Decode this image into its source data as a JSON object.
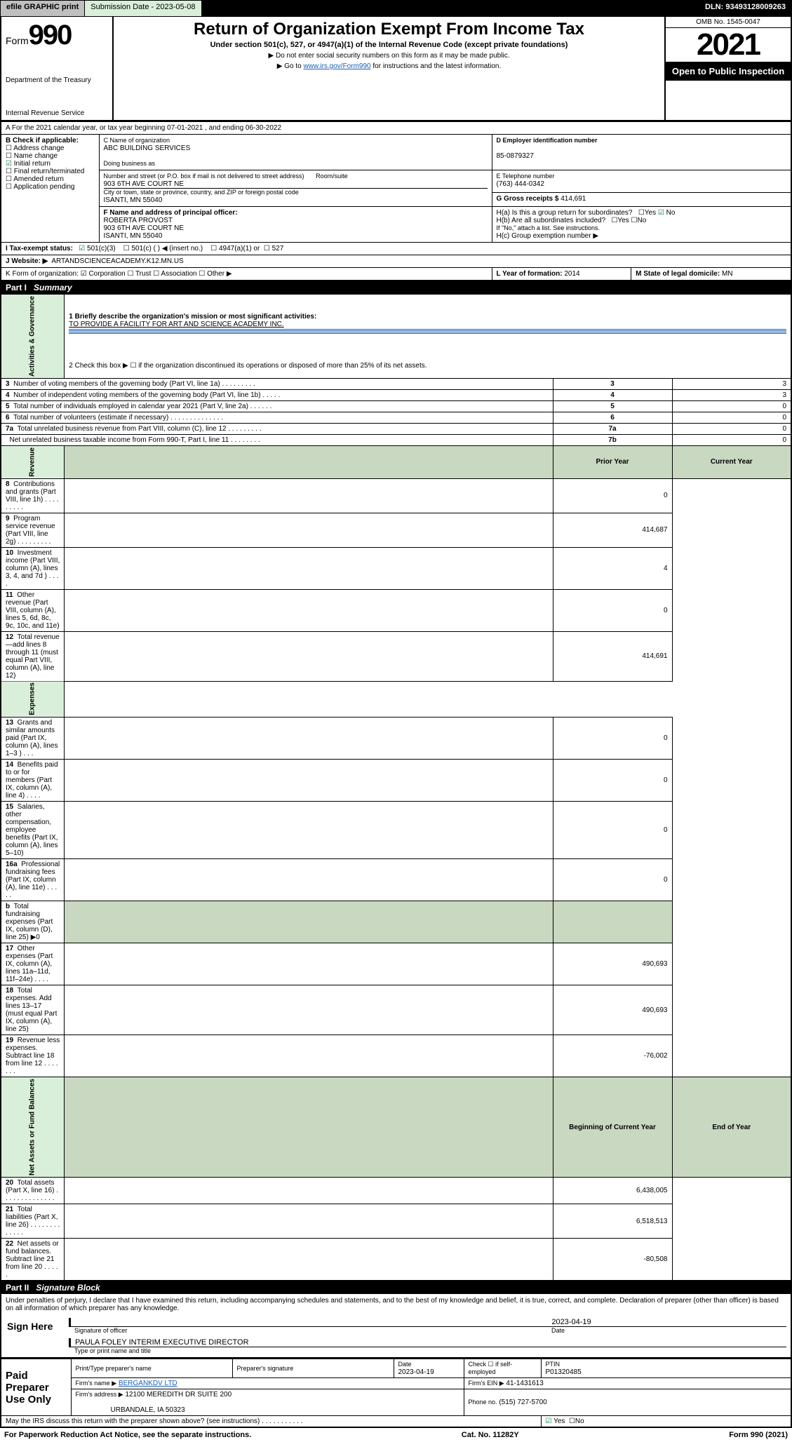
{
  "topbar": {
    "efile": "efile GRAPHIC print",
    "submission": "Submission Date - 2023-05-08",
    "dln": "DLN: 93493128009263"
  },
  "header": {
    "form_word": "Form",
    "form_num": "990",
    "dept": "Department of the Treasury",
    "irs": "Internal Revenue Service",
    "title": "Return of Organization Exempt From Income Tax",
    "sub": "Under section 501(c), 527, or 4947(a)(1) of the Internal Revenue Code (except private foundations)",
    "note1": "▶ Do not enter social security numbers on this form as it may be made public.",
    "note2_pre": "▶ Go to ",
    "note2_link": "www.irs.gov/Form990",
    "note2_post": " for instructions and the latest information.",
    "omb": "OMB No. 1545-0047",
    "year": "2021",
    "open": "Open to Public Inspection"
  },
  "periodA": "A For the 2021 calendar year, or tax year beginning 07-01-2021  , and ending 06-30-2022",
  "boxB": {
    "label": "B Check if applicable:",
    "items": [
      "Address change",
      "Name change",
      "Initial return",
      "Final return/terminated",
      "Amended return",
      "Application pending"
    ],
    "checked_idx": 2
  },
  "boxC": {
    "name_lbl": "C Name of organization",
    "name": "ABC BUILDING SERVICES",
    "dba_lbl": "Doing business as",
    "addr_lbl": "Number and street (or P.O. box if mail is not delivered to street address)",
    "room_lbl": "Room/suite",
    "addr": "903 6TH AVE COURT NE",
    "city_lbl": "City or town, state or province, country, and ZIP or foreign postal code",
    "city": "ISANTI, MN  55040"
  },
  "boxD": {
    "lbl": "D Employer identification number",
    "val": "85-0879327"
  },
  "boxE": {
    "lbl": "E Telephone number",
    "val": "(763) 444-0342"
  },
  "boxG": {
    "lbl": "G Gross receipts $",
    "val": "414,691"
  },
  "boxF": {
    "lbl": "F Name and address of principal officer:",
    "name": "ROBERTA PROVOST",
    "addr": "903 6TH AVE COURT NE",
    "city": "ISANTI, MN  55040"
  },
  "boxH": {
    "a": "H(a)  Is this a group return for subordinates?",
    "a_no": "No",
    "b": "H(b)  Are all subordinates included?",
    "b_note": "If \"No,\" attach a list. See instructions.",
    "c": "H(c)  Group exemption number ▶"
  },
  "taxI": {
    "lbl": "I  Tax-exempt status:",
    "c3": "501(c)(3)",
    "c": "501(c) (  ) ◀ (insert no.)",
    "a4947": "4947(a)(1) or",
    "s527": "527"
  },
  "taxJ": {
    "lbl": "J  Website: ▶",
    "val": "ARTANDSCIENCEACADEMY.K12.MN.US"
  },
  "rowK": "K Form of organization:  ☑ Corporation  ☐ Trust  ☐ Association  ☐ Other ▶",
  "rowL": {
    "lbl": "L Year of formation:",
    "val": "2014"
  },
  "rowM": {
    "lbl": "M State of legal domicile:",
    "val": "MN"
  },
  "part1": {
    "label": "Part I",
    "title": "Summary"
  },
  "summary": {
    "q1": "1   Briefly describe the organization's mission or most significant activities:",
    "q1v": "TO PROVIDE A FACILITY FOR ART AND SCIENCE ACADEMY INC.",
    "q2": "2   Check this box ▶ ☐  if the organization discontinued its operations or disposed of more than 25% of its net assets.",
    "rows_ag": [
      {
        "n": "3",
        "t": "Number of voting members of the governing body (Part VI, line 1a)  .   .   .   .   .   .   .   .   .",
        "box": "3",
        "v": "3"
      },
      {
        "n": "4",
        "t": "Number of independent voting members of the governing body (Part VI, line 1b)  .   .   .   .   .",
        "box": "4",
        "v": "3"
      },
      {
        "n": "5",
        "t": "Total number of individuals employed in calendar year 2021 (Part V, line 2a)  .   .   .   .   .   .",
        "box": "5",
        "v": "0"
      },
      {
        "n": "6",
        "t": "Total number of volunteers (estimate if necessary)  .   .   .   .   .   .   .   .   .   .   .   .   .   .",
        "box": "6",
        "v": "0"
      },
      {
        "n": "7a",
        "t": "Total unrelated business revenue from Part VIII, column (C), line 12  .   .   .   .   .   .   .   .   .",
        "box": "7a",
        "v": "0"
      },
      {
        "n": "",
        "t": "Net unrelated business taxable income from Form 990-T, Part I, line 11  .   .   .   .   .   .   .   .",
        "box": "7b",
        "v": "0"
      }
    ],
    "col_prior": "Prior Year",
    "col_curr": "Current Year",
    "rev": [
      {
        "n": "8",
        "t": "Contributions and grants (Part VIII, line 1h)   .   .   .   .   .   .   .   .   .",
        "p": "",
        "c": "0"
      },
      {
        "n": "9",
        "t": "Program service revenue (Part VIII, line 2g)   .   .   .   .   .   .   .   .   .",
        "p": "",
        "c": "414,687"
      },
      {
        "n": "10",
        "t": "Investment income (Part VIII, column (A), lines 3, 4, and 7d )   .   .   .   .",
        "p": "",
        "c": "4"
      },
      {
        "n": "11",
        "t": "Other revenue (Part VIII, column (A), lines 5, 6d, 8c, 9c, 10c, and 11e)",
        "p": "",
        "c": "0"
      },
      {
        "n": "12",
        "t": "Total revenue—add lines 8 through 11 (must equal Part VIII, column (A), line 12)",
        "p": "",
        "c": "414,691"
      }
    ],
    "exp": [
      {
        "n": "13",
        "t": "Grants and similar amounts paid (Part IX, column (A), lines 1–3 )   .   .   .",
        "p": "",
        "c": "0"
      },
      {
        "n": "14",
        "t": "Benefits paid to or for members (Part IX, column (A), line 4)   .   .   .   .",
        "p": "",
        "c": "0"
      },
      {
        "n": "15",
        "t": "Salaries, other compensation, employee benefits (Part IX, column (A), lines 5–10)",
        "p": "",
        "c": "0"
      },
      {
        "n": "16a",
        "t": "Professional fundraising fees (Part IX, column (A), line 11e)   .   .   .   .   .",
        "p": "",
        "c": "0"
      },
      {
        "n": "b",
        "t": "Total fundraising expenses (Part IX, column (D), line 25) ▶0",
        "p": "shade",
        "c": "shade"
      },
      {
        "n": "17",
        "t": "Other expenses (Part IX, column (A), lines 11a–11d, 11f–24e)   .   .   .   .",
        "p": "",
        "c": "490,693"
      },
      {
        "n": "18",
        "t": "Total expenses. Add lines 13–17 (must equal Part IX, column (A), line 25)",
        "p": "",
        "c": "490,693"
      },
      {
        "n": "19",
        "t": "Revenue less expenses. Subtract line 18 from line 12   .   .   .   .   .   .   .",
        "p": "",
        "c": "-76,002"
      }
    ],
    "col_beg": "Beginning of Current Year",
    "col_end": "End of Year",
    "net": [
      {
        "n": "20",
        "t": "Total assets (Part X, line 16)   .   .   .   .   .   .   .   .   .   .   .   .   .   .",
        "p": "",
        "c": "6,438,005"
      },
      {
        "n": "21",
        "t": "Total liabilities (Part X, line 26)   .   .   .   .   .   .   .   .   .   .   .   .   .",
        "p": "",
        "c": "6,518,513"
      },
      {
        "n": "22",
        "t": "Net assets or fund balances. Subtract line 21 from line 20   .   .   .   .   .",
        "p": "",
        "c": "-80,508"
      }
    ],
    "sidebars": [
      "Activities & Governance",
      "Revenue",
      "Expenses",
      "Net Assets or Fund Balances"
    ]
  },
  "part2": {
    "label": "Part II",
    "title": "Signature Block"
  },
  "penalties": "Under penalties of perjury, I declare that I have examined this return, including accompanying schedules and statements, and to the best of my knowledge and belief, it is true, correct, and complete. Declaration of preparer (other than officer) is based on all information of which preparer has any knowledge.",
  "sign": {
    "here": "Sign Here",
    "sig_of": "Signature of officer",
    "date_lbl": "Date",
    "date": "2023-04-19",
    "name": "PAULA FOLEY INTERIM EXECUTIVE DIRECTOR",
    "name_lbl": "Type or print name and title"
  },
  "paid": {
    "title": "Paid Preparer Use Only",
    "c1": "Print/Type preparer's name",
    "c2": "Preparer's signature",
    "c3": "Date",
    "c3v": "2023-04-19",
    "c4": "Check ☐ if self-employed",
    "c5": "PTIN",
    "c5v": "P01320485",
    "firm_lbl": "Firm's name     ▶",
    "firm": "BERGANKDV LTD",
    "ein_lbl": "Firm's EIN ▶",
    "ein": "41-1431613",
    "addr_lbl": "Firm's address ▶",
    "addr1": "12100 MEREDITH DR SUITE 200",
    "addr2": "URBANDALE, IA  50323",
    "phone_lbl": "Phone no.",
    "phone": "(515) 727-5700"
  },
  "may": "May the IRS discuss this return with the preparer shown above? (see instructions)   .   .   .   .   .   .   .   .   .   .   .",
  "may_yes": "Yes",
  "may_no": "No",
  "footer": {
    "pra": "For Paperwork Reduction Act Notice, see the separate instructions.",
    "cat": "Cat. No. 11282Y",
    "form": "Form 990 (2021)"
  },
  "colors": {
    "green": "#d9efd9",
    "shade": "#c9d8c0",
    "link": "#1a5fb4"
  }
}
